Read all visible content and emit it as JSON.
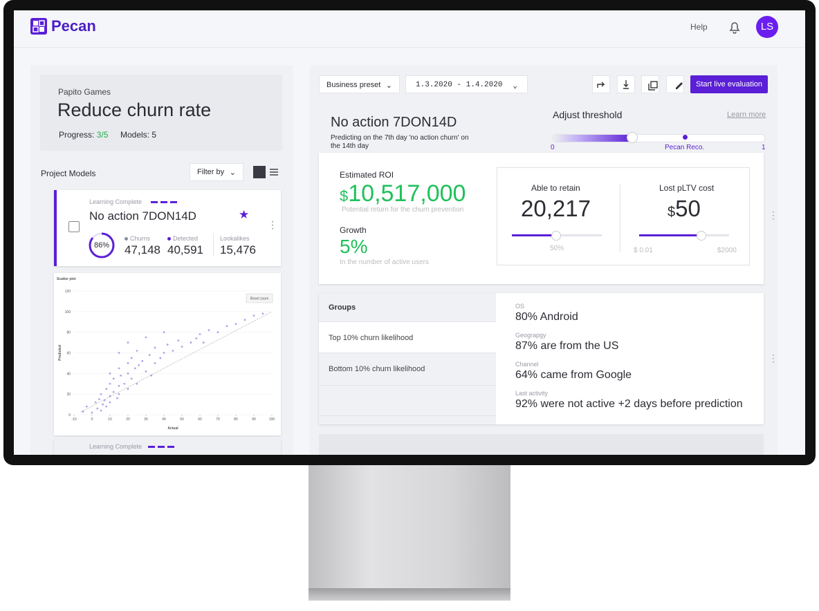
{
  "header": {
    "brand": "Pecan",
    "help": "Help",
    "avatar": "LS"
  },
  "project": {
    "company": "Papito Games",
    "title": "Reduce churn rate",
    "progress_label": "Progress:",
    "progress_value": "3/5",
    "models": "Models: 5"
  },
  "models_list": {
    "title": "Project Models",
    "filter": "Filter by"
  },
  "model_card": {
    "status": "Learning Complete",
    "name": "No action 7DON14D",
    "ring_value": 86,
    "ring_label": "86%",
    "stats": [
      {
        "label": "Churns",
        "value": "47,148"
      },
      {
        "label": "Detected",
        "value": "40,591"
      },
      {
        "label": "Lookalikes",
        "value": "15,476"
      }
    ]
  },
  "scatter_plot": {
    "title": "Scatter plot",
    "reset": "Reset zoom",
    "xlabel": "Actual",
    "ylabel": "Predicted",
    "xlim": [
      -10,
      100
    ],
    "ylim": [
      0,
      120
    ],
    "xticks": [
      -10,
      0,
      10,
      20,
      30,
      40,
      50,
      60,
      70,
      80,
      90,
      100
    ],
    "yticks": [
      0,
      20,
      40,
      60,
      80,
      100,
      120
    ],
    "x": [
      -5,
      -3,
      0,
      2,
      3,
      4,
      5,
      5,
      6,
      7,
      8,
      8,
      10,
      10,
      10,
      10,
      12,
      12,
      14,
      15,
      15,
      15,
      15,
      16,
      18,
      20,
      20,
      20,
      20,
      22,
      22,
      24,
      25,
      25,
      26,
      28,
      30,
      30,
      32,
      33,
      35,
      35,
      38,
      40,
      40,
      42,
      45,
      48,
      50,
      55,
      58,
      60,
      62,
      65,
      70,
      75,
      80,
      85,
      90,
      95
    ],
    "y": [
      3,
      8,
      2,
      12,
      6,
      15,
      4,
      20,
      10,
      14,
      25,
      8,
      18,
      30,
      12,
      40,
      22,
      35,
      16,
      28,
      45,
      20,
      60,
      38,
      30,
      25,
      50,
      70,
      40,
      35,
      55,
      45,
      30,
      62,
      48,
      52,
      42,
      75,
      58,
      38,
      65,
      50,
      55,
      60,
      80,
      68,
      62,
      72,
      66,
      70,
      74,
      78,
      70,
      82,
      80,
      86,
      88,
      92,
      96,
      98
    ]
  },
  "second_card": {
    "status": "Learning Complete"
  },
  "toolbar": {
    "preset": "Business preset",
    "dates": "1.3.2020 - 1.4.2020",
    "cta": "Start live evaluation"
  },
  "model_detail": {
    "name": "No action 7DON14D",
    "description": "Predicting on the 7th day 'no action churn' on the 14th day",
    "threshold_title": "Adjust threshold",
    "learn_more": "Learn more",
    "threshold_min": "0",
    "threshold_reco": "Pecan Reco.",
    "threshold_max": "1"
  },
  "roi": {
    "label": "Estimated ROI",
    "currency": "$",
    "value": "10,517,000",
    "caption": "Potential return for the churn prevention",
    "growth_label": "Growth",
    "growth_value": "5%",
    "growth_caption": "In the number of active users"
  },
  "retain": {
    "label": "Able to retain",
    "value": "20,217",
    "slider_label": "50%"
  },
  "cost": {
    "label": "Lost pLTV cost",
    "currency": "$",
    "value": "50",
    "min": "$ 0.01",
    "max": "$2000"
  },
  "groups": {
    "title": "Groups",
    "rows": [
      "Top 10% churn likelihood",
      "Bottom 10% churn likelihood"
    ],
    "insights": [
      {
        "label": "OS",
        "value": "80% Android"
      },
      {
        "label": "Geograpgy",
        "value": "87% are from the US"
      },
      {
        "label": "Channel",
        "value": "64% came from Google"
      },
      {
        "label": "Last activity",
        "value": "92% were not active +2 days before prediction"
      }
    ]
  }
}
